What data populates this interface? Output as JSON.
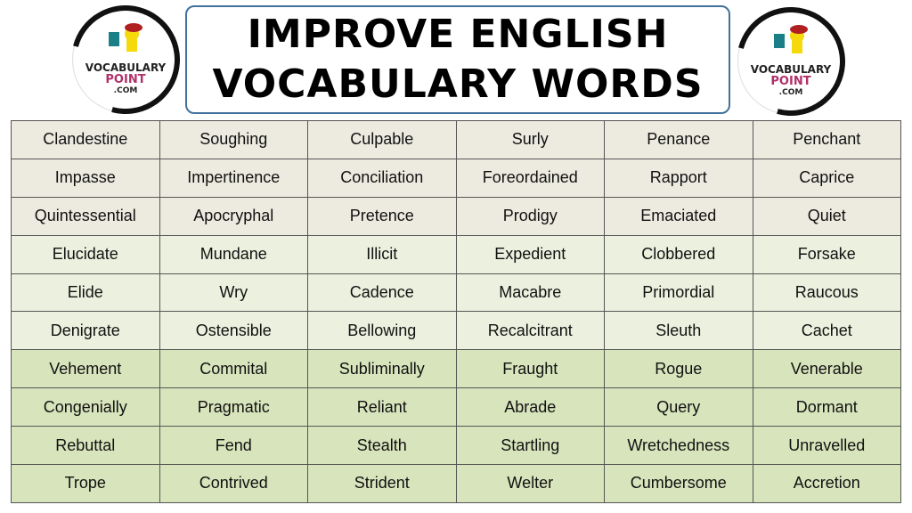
{
  "title": {
    "line1": "IMPROVE ENGLISH",
    "line2": "VOCABULARY WORDS"
  },
  "logo": {
    "line1": "VOCABULARY",
    "line2": "POINT",
    "line3": ".COM"
  },
  "colors": {
    "title_border": "#41719c",
    "row_group_1": "#edebe0",
    "row_group_2": "#ebf1de",
    "row_group_3": "#d8e4bc",
    "logo_accent": "#b0306a"
  },
  "table": {
    "rows": [
      [
        "Clandestine",
        "Soughing",
        "Culpable",
        "Surly",
        "Penance",
        "Penchant"
      ],
      [
        "Impasse",
        "Impertinence",
        "Conciliation",
        "Foreordained",
        "Rapport",
        "Caprice"
      ],
      [
        "Quintessential",
        "Apocryphal",
        "Pretence",
        "Prodigy",
        "Emaciated",
        "Quiet"
      ],
      [
        "Elucidate",
        "Mundane",
        "Illicit",
        "Expedient",
        "Clobbered",
        "Forsake"
      ],
      [
        "Elide",
        "Wry",
        "Cadence",
        "Macabre",
        "Primordial",
        "Raucous"
      ],
      [
        "Denigrate",
        "Ostensible",
        "Bellowing",
        "Recalcitrant",
        "Sleuth",
        "Cachet"
      ],
      [
        "Vehement",
        "Commital",
        "Subliminally",
        "Fraught",
        "Rogue",
        "Venerable"
      ],
      [
        "Congenially",
        "Pragmatic",
        "Reliant",
        "Abrade",
        "Query",
        "Dormant"
      ],
      [
        "Rebuttal",
        "Fend",
        "Stealth",
        "Startling",
        "Wretchedness",
        "Unravelled"
      ],
      [
        "Trope",
        "Contrived",
        "Strident",
        "Welter",
        "Cumbersome",
        "Accretion"
      ]
    ]
  }
}
